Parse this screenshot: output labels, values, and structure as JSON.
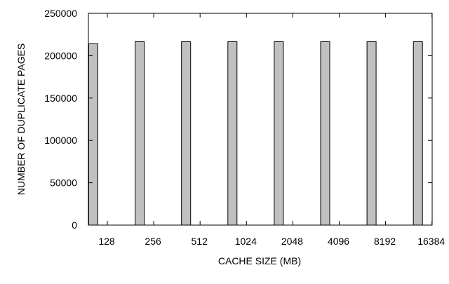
{
  "chart_data": {
    "type": "bar",
    "xlabel": "CACHE SIZE (MB)",
    "ylabel": "NUMBER OF DUPLICATE PAGES",
    "categories": [
      "128",
      "256",
      "512",
      "1024",
      "2048",
      "4096",
      "8192",
      "16384"
    ],
    "values": [
      214000,
      216500,
      216500,
      216500,
      216500,
      216500,
      216500,
      216500
    ],
    "ylim": [
      0,
      250000
    ],
    "yticks": [
      "0",
      "50000",
      "100000",
      "150000",
      "200000",
      "250000"
    ],
    "yticks_values": [
      0,
      50000,
      100000,
      150000,
      200000,
      250000
    ],
    "bar_color": "#c0c0c0",
    "bar_edge_color": "#000000",
    "grid": false,
    "legend": "none"
  }
}
